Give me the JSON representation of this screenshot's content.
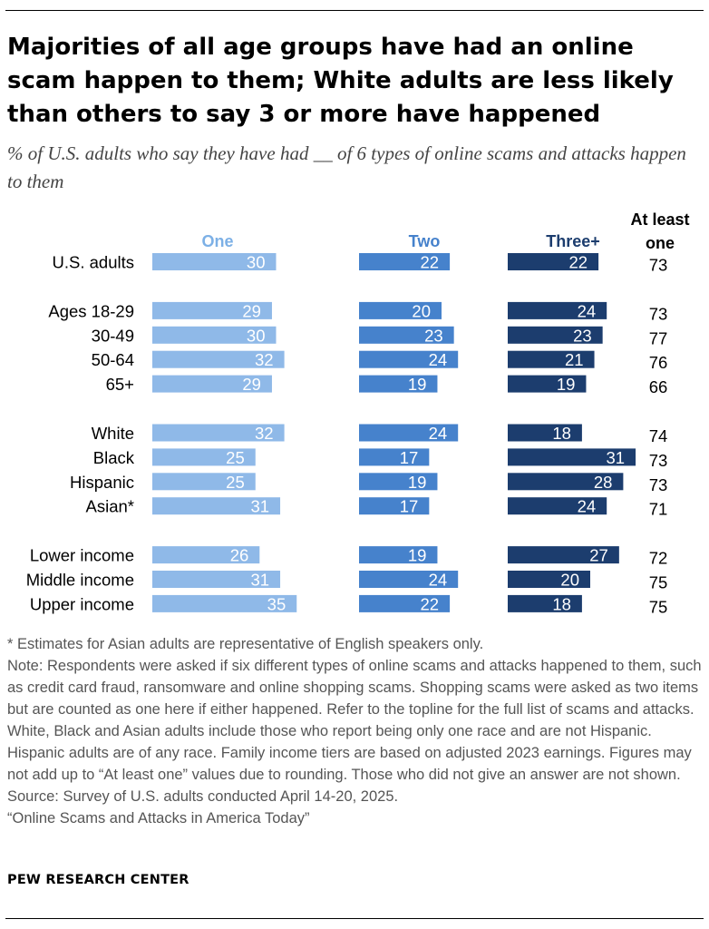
{
  "title": "Majorities of all age groups have had an online scam happen to them; White adults are less likely than others to say 3 or more have happened",
  "subtitle": "% of U.S. adults who say they have had __ of 6 types of online scams and attacks happen to them",
  "chart_data": {
    "type": "bar",
    "columns": [
      "One",
      "Two",
      "Three+"
    ],
    "total_header": "At least one",
    "colors": {
      "One": "#8fb9e8",
      "Two": "#4682cc",
      "Three+": "#1c3d6e",
      "One_header": "#7cb0e6"
    },
    "groups": [
      {
        "rows": [
          {
            "label": "U.S. adults",
            "values": [
              30,
              22,
              22
            ],
            "total": 73
          }
        ]
      },
      {
        "rows": [
          {
            "label": "Ages 18-29",
            "values": [
              29,
              20,
              24
            ],
            "total": 73
          },
          {
            "label": "30-49",
            "values": [
              30,
              23,
              23
            ],
            "total": 77
          },
          {
            "label": "50-64",
            "values": [
              32,
              24,
              21
            ],
            "total": 76
          },
          {
            "label": "65+",
            "values": [
              29,
              19,
              19
            ],
            "total": 66
          }
        ]
      },
      {
        "rows": [
          {
            "label": "White",
            "values": [
              32,
              24,
              18
            ],
            "total": 74
          },
          {
            "label": "Black",
            "values": [
              25,
              17,
              31
            ],
            "total": 73
          },
          {
            "label": "Hispanic",
            "values": [
              25,
              19,
              28
            ],
            "total": 73
          },
          {
            "label": "Asian*",
            "values": [
              31,
              17,
              24
            ],
            "total": 71
          }
        ]
      },
      {
        "rows": [
          {
            "label": "Lower income",
            "values": [
              26,
              19,
              27
            ],
            "total": 72
          },
          {
            "label": "Middle income",
            "values": [
              31,
              24,
              20
            ],
            "total": 75
          },
          {
            "label": "Upper income",
            "values": [
              35,
              22,
              18
            ],
            "total": 75
          }
        ]
      }
    ]
  },
  "notes": {
    "asterisk": "* Estimates for Asian adults are representative of English speakers only.",
    "note": "Note: Respondents were asked if six different types of online scams and attacks happened to them, such as credit card fraud, ransomware and online shopping scams. Shopping scams were asked as two items but are counted as one here if either happened. Refer to the topline for the full list of scams and attacks. White, Black and Asian adults include those who report being only one race and are not Hispanic. Hispanic adults are of any race. Family income tiers are based on adjusted 2023 earnings. Figures may not add up to “At least one” values due to rounding. Those who did not give an answer are not shown.",
    "source": "Source: Survey of U.S. adults conducted April 14-20, 2025.",
    "report": "“Online Scams and Attacks in America Today”"
  },
  "brand": "PEW RESEARCH CENTER"
}
